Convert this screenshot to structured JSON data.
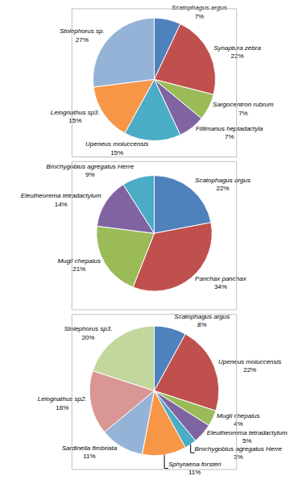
{
  "chart_data": [
    {
      "type": "pie",
      "categories": [
        "Scatophagus argus",
        "Synaptura zebra",
        "Sargocentron rubrum",
        "Fillimanus heptadactyla",
        "Upeneus moluccensis",
        "Leiognathus sp3.",
        "Stolephorus sp."
      ],
      "values": [
        7,
        22,
        7,
        7,
        15,
        15,
        27
      ],
      "value_labels": [
        "7%",
        "22%",
        "7%",
        "7%",
        "15%",
        "15%",
        "27%"
      ],
      "colors": [
        "#4f81bd",
        "#c0504d",
        "#9bbb59",
        "#8064a2",
        "#4bacc6",
        "#f79646",
        "#95b3d7"
      ],
      "data_labels": true
    },
    {
      "type": "pie",
      "categories": [
        "Scatophagus argus",
        "Panchax panchax",
        "Mugil chepalus",
        "Eleutheorema tetradactylum",
        "Brochygobius agregatus Herre"
      ],
      "values": [
        22,
        34,
        21,
        14,
        9
      ],
      "value_labels": [
        "22%",
        "34%",
        "21%",
        "14%",
        "9%"
      ],
      "colors": [
        "#4f81bd",
        "#c0504d",
        "#9bbb59",
        "#8064a2",
        "#4bacc6"
      ],
      "data_labels": true
    },
    {
      "type": "pie",
      "categories": [
        "Scatophagus argus",
        "Upeneus moluccensis",
        "Mugil chepalus",
        "Eleutheorema tetradactylum",
        "Brochygobius agregatus Herre",
        "Sphyraena forsteri",
        "Sardinella fimbriata",
        "Leiognathus sp2.",
        "Stolephorus sp3."
      ],
      "values": [
        8,
        22,
        4,
        5,
        3,
        11,
        11,
        16,
        20
      ],
      "value_labels": [
        "8%",
        "22%",
        "4%",
        "5%",
        "3%",
        "11%",
        "11%",
        "16%",
        "20%"
      ],
      "colors": [
        "#4f81bd",
        "#c0504d",
        "#9bbb59",
        "#8064a2",
        "#4bacc6",
        "#f79646",
        "#95b3d7",
        "#d99694",
        "#c3d69b"
      ],
      "data_labels": true
    }
  ]
}
